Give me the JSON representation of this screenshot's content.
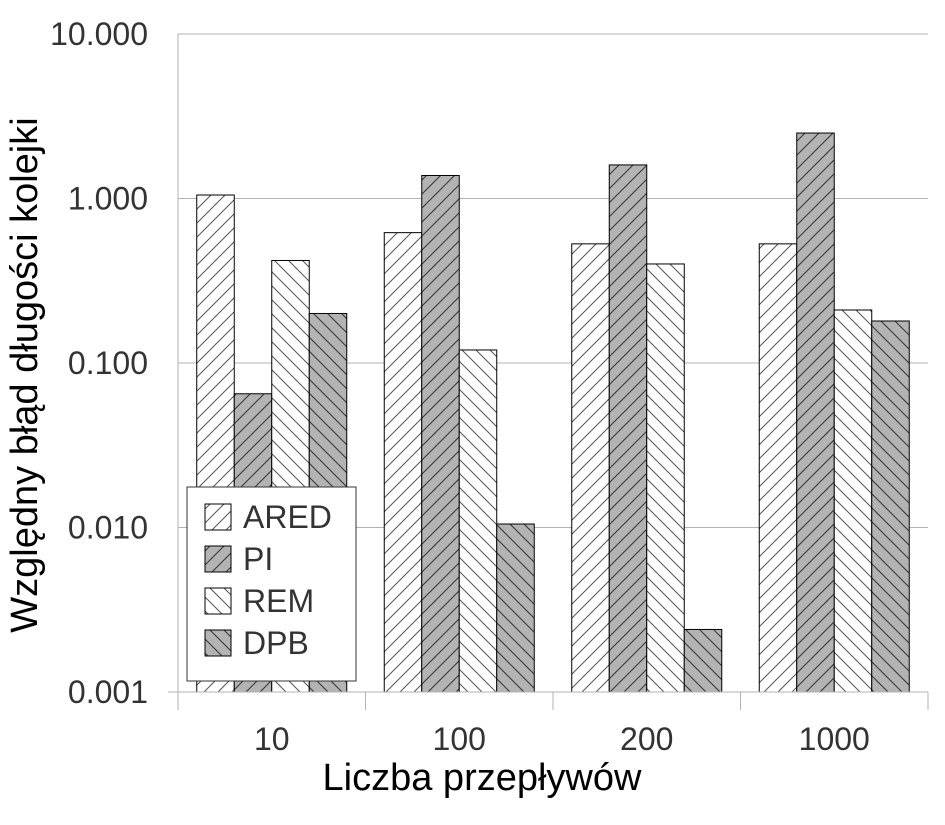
{
  "chart_data": {
    "type": "bar",
    "xlabel": "Liczba przepływów",
    "ylabel": "Względny błąd długości kolejki",
    "yscale": "log",
    "ylim": [
      0.001,
      10
    ],
    "yticks": [
      0.001,
      0.01,
      0.1,
      1,
      10
    ],
    "ytick_labels": [
      "0.001",
      "0.010",
      "0.100",
      "1.000",
      "10.000"
    ],
    "categories": [
      "10",
      "100",
      "200",
      "1000"
    ],
    "grid": "horizontal",
    "legend_position": "bottom-left",
    "series": [
      {
        "name": "ARED",
        "fill": "#ffffff",
        "hatch": "forward",
        "values": [
          1.05,
          0.62,
          0.53,
          0.53
        ]
      },
      {
        "name": "PI",
        "fill": "#b3b3b3",
        "hatch": "forward",
        "values": [
          0.065,
          1.38,
          1.6,
          2.5
        ]
      },
      {
        "name": "REM",
        "fill": "#ffffff",
        "hatch": "back",
        "values": [
          0.42,
          0.12,
          0.4,
          0.21
        ]
      },
      {
        "name": "DPB",
        "fill": "#b3b3b3",
        "hatch": "back",
        "values": [
          0.2,
          0.0105,
          0.0024,
          0.18
        ]
      }
    ]
  }
}
